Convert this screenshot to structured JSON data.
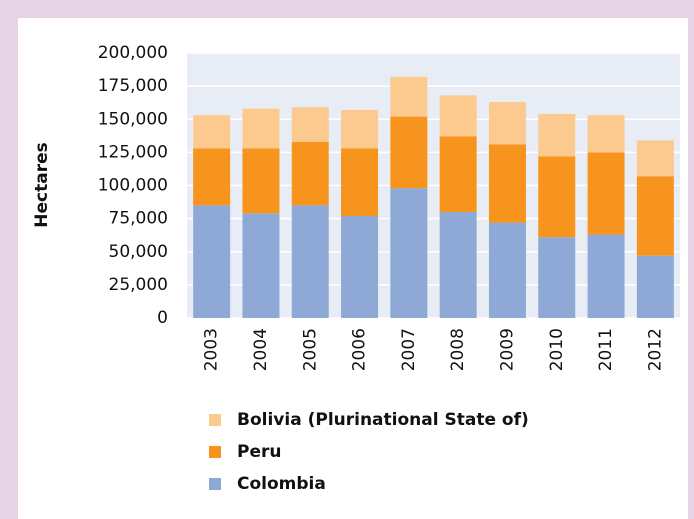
{
  "chart_data": {
    "type": "stacked_bar",
    "y_label": "Hectares",
    "categories": [
      "2003",
      "2004",
      "2005",
      "2006",
      "2007",
      "2008",
      "2009",
      "2010",
      "2011",
      "2012"
    ],
    "series": [
      {
        "name": "Colombia",
        "color": "#8fa9d6",
        "values": [
          85000,
          79000,
          85000,
          77000,
          98000,
          80000,
          72000,
          61000,
          63000,
          47000
        ]
      },
      {
        "name": "Peru",
        "color": "#f7941d",
        "values": [
          43000,
          49000,
          48000,
          51000,
          54000,
          57000,
          59000,
          61000,
          62000,
          60000
        ]
      },
      {
        "name": "Bolivia (Plurinational State of)",
        "color": "#fcc98f",
        "values": [
          25000,
          30000,
          26000,
          29000,
          30000,
          31000,
          32000,
          32000,
          28000,
          27000
        ]
      }
    ],
    "ylim": [
      0,
      200000
    ],
    "yticks": [
      0,
      {
        "value": 25000,
        "label": "25,000"
      },
      {
        "value": 50000,
        "label": "50,000"
      },
      {
        "value": 75000,
        "label": "75,000"
      },
      {
        "value": 100000,
        "label": "100,000"
      },
      {
        "value": 125000,
        "label": "125,000"
      },
      {
        "value": 150000,
        "label": "150,000"
      },
      {
        "value": 175000,
        "label": "175,000"
      },
      {
        "value": 200000,
        "label": "200,000"
      }
    ],
    "grid": true
  }
}
